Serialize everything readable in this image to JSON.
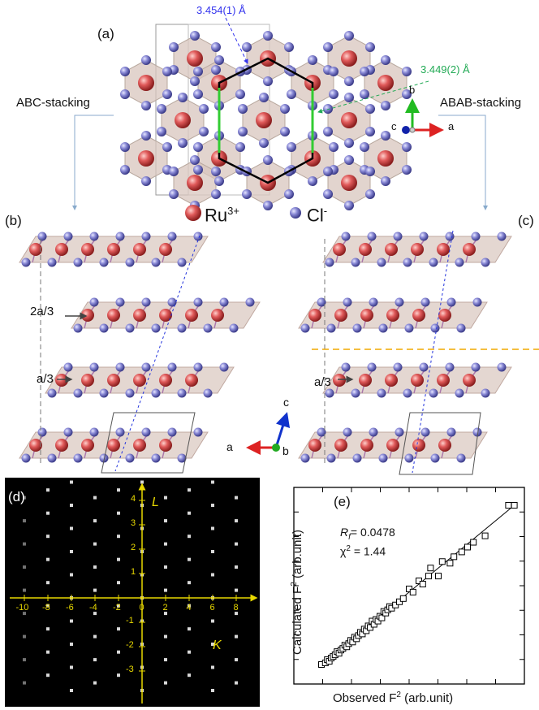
{
  "panels": {
    "a": {
      "label": "(a)",
      "distance_blue": "3.454(1) Å",
      "distance_green": "3.449(2) Å",
      "left_stacking": "ABC-stacking",
      "right_stacking": "ABAB-stacking",
      "axis_b": "b",
      "axis_c": "c",
      "axis_a": "a",
      "legend_ru": "Ru",
      "legend_ru_sup": "3+",
      "legend_cl": "Cl",
      "legend_cl_sup": "-"
    },
    "b": {
      "label": "(b)",
      "shift_2a3": "2a/3",
      "shift_a3": "a/3",
      "axis_a": "a",
      "axis_b": "b",
      "axis_c": "c"
    },
    "c": {
      "label": "(c)",
      "shift_a3": "a/3"
    },
    "d": {
      "label": "(d)",
      "axis_L": "L",
      "axis_K": "K",
      "k_ticks": [
        "-10",
        "-8",
        "-6",
        "-4",
        "-2",
        "0",
        "2",
        "4",
        "6",
        "8"
      ],
      "l_ticks": [
        "4",
        "3",
        "2",
        "1",
        "-1",
        "-2",
        "-3"
      ]
    },
    "e": {
      "label": "(e)",
      "rf_symbol": "R",
      "rf_sub": "f",
      "rf_value": "= 0.0478",
      "chi_label": "χ",
      "chi_sup": "2",
      "chi_value": "= 1.44",
      "ylabel_main": "Calculated F",
      "ylabel_sup": "2",
      "ylabel_unit": " (arb.unit)",
      "xlabel_main": "Observed F",
      "xlabel_sup": "2",
      "xlabel_unit": " (arb.unit)"
    }
  },
  "colors": {
    "ru": "#e05a5a",
    "cl": "#8a8ad6",
    "octahedron": "#d8c6bd",
    "hexagon": "#000000",
    "green_bond": "#33cc33",
    "dist_blue": "#3333ee",
    "dist_green": "#22aa55",
    "dashed_orange": "#f0a800",
    "dashed_blue": "#2233dd",
    "diffraction_axis": "#e8d800"
  },
  "chart_data": {
    "type": "scatter",
    "title": "",
    "xlabel": "Observed F2 (arb.unit)",
    "ylabel": "Calculated F2 (arb.unit)",
    "annotations": [
      "Rf = 0.0478",
      "χ2 = 1.44"
    ],
    "points": [
      [
        0.0,
        0.0
      ],
      [
        0.02,
        0.01
      ],
      [
        0.03,
        0.03
      ],
      [
        0.04,
        0.02
      ],
      [
        0.05,
        0.04
      ],
      [
        0.06,
        0.05
      ],
      [
        0.07,
        0.06
      ],
      [
        0.08,
        0.08
      ],
      [
        0.09,
        0.07
      ],
      [
        0.1,
        0.09
      ],
      [
        0.11,
        0.1
      ],
      [
        0.12,
        0.12
      ],
      [
        0.13,
        0.11
      ],
      [
        0.14,
        0.13
      ],
      [
        0.15,
        0.15
      ],
      [
        0.16,
        0.14
      ],
      [
        0.17,
        0.17
      ],
      [
        0.18,
        0.16
      ],
      [
        0.19,
        0.18
      ],
      [
        0.2,
        0.2
      ],
      [
        0.21,
        0.19
      ],
      [
        0.22,
        0.22
      ],
      [
        0.23,
        0.21
      ],
      [
        0.24,
        0.24
      ],
      [
        0.25,
        0.23
      ],
      [
        0.26,
        0.27
      ],
      [
        0.27,
        0.25
      ],
      [
        0.28,
        0.28
      ],
      [
        0.29,
        0.27
      ],
      [
        0.3,
        0.3
      ],
      [
        0.31,
        0.29
      ],
      [
        0.32,
        0.33
      ],
      [
        0.33,
        0.32
      ],
      [
        0.34,
        0.34
      ],
      [
        0.35,
        0.36
      ],
      [
        0.36,
        0.35
      ],
      [
        0.38,
        0.37
      ],
      [
        0.4,
        0.39
      ],
      [
        0.42,
        0.41
      ],
      [
        0.45,
        0.47
      ],
      [
        0.47,
        0.45
      ],
      [
        0.5,
        0.52
      ],
      [
        0.52,
        0.5
      ],
      [
        0.55,
        0.55
      ],
      [
        0.56,
        0.6
      ],
      [
        0.6,
        0.55
      ],
      [
        0.62,
        0.64
      ],
      [
        0.66,
        0.63
      ],
      [
        0.68,
        0.67
      ],
      [
        0.72,
        0.7
      ],
      [
        0.75,
        0.73
      ],
      [
        0.78,
        0.76
      ],
      [
        0.84,
        0.8
      ],
      [
        0.96,
        0.99
      ],
      [
        0.99,
        0.99
      ]
    ],
    "fit_line": [
      [
        0,
        0
      ],
      [
        1,
        1
      ]
    ],
    "grid": false,
    "xticks": "unlabeled",
    "yticks": "unlabeled"
  }
}
